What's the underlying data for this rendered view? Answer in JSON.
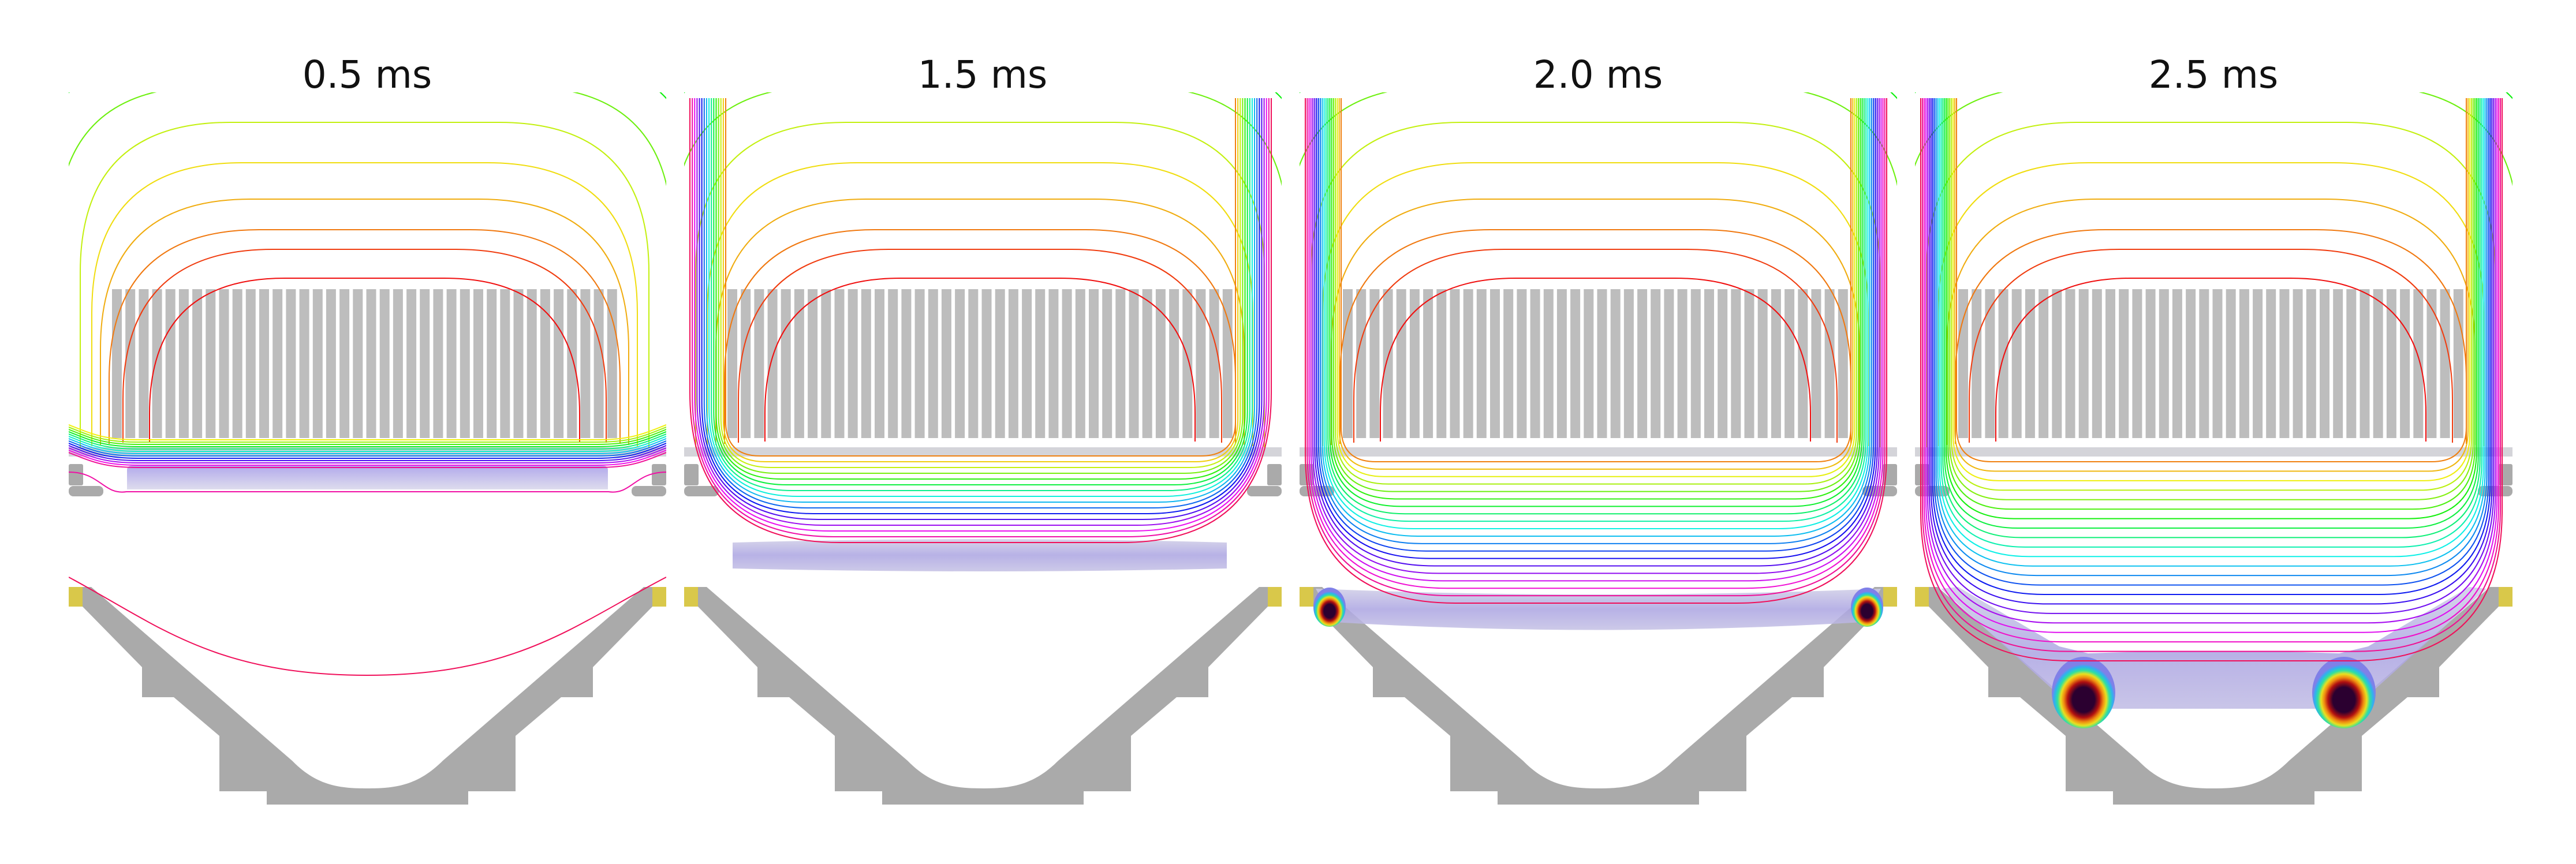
{
  "panels": [
    {
      "time_label": "0.5 ms"
    },
    {
      "time_label": "1.5 ms"
    },
    {
      "time_label": "2.0 ms"
    },
    {
      "time_label": "2.5 ms"
    }
  ],
  "colors": {
    "coil": "#bdbdbd",
    "plate": "#cdcdd2",
    "structure": "#aaaaaa",
    "magnet": "#d9c84a",
    "sheet_top": "#9a8fe6",
    "sheet_bottom": "#d4d2e8",
    "hotspot_core": "#2b0030"
  }
}
